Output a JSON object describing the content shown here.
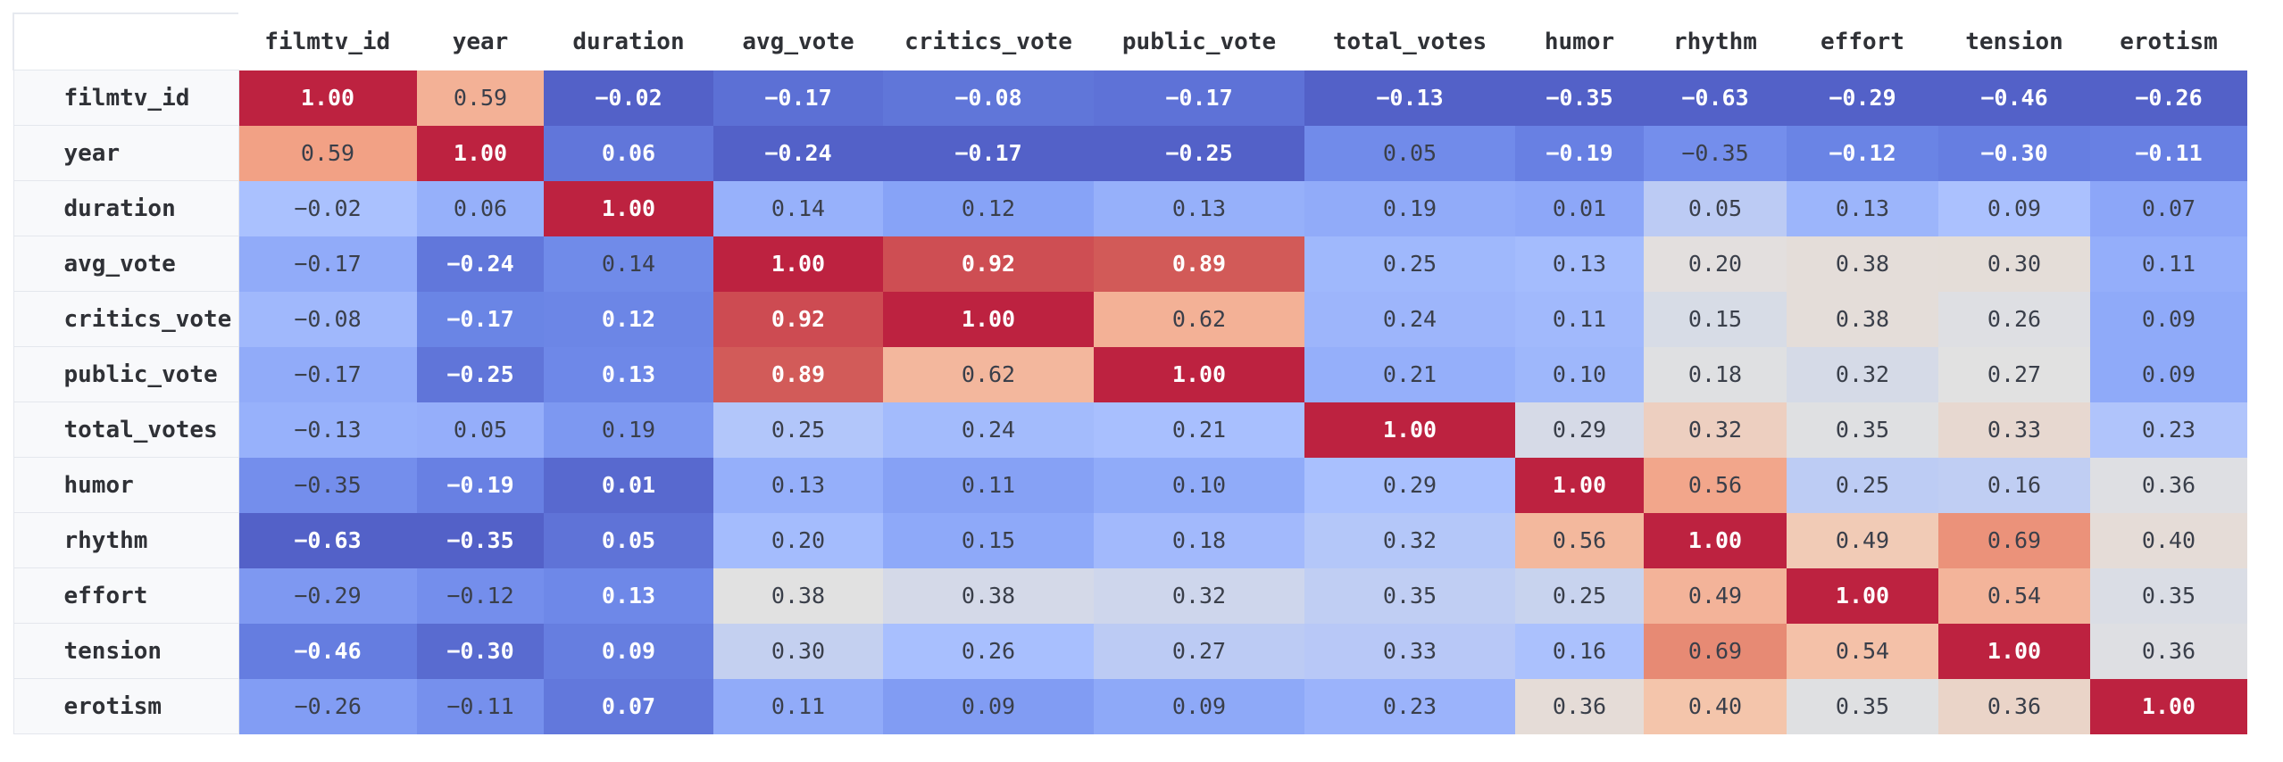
{
  "chart_data": {
    "type": "heatmap",
    "title": "",
    "xlabel": "",
    "ylabel": "",
    "colormap": "coolwarm",
    "value_range": [
      -1,
      1
    ],
    "number_format": "2 decimals, unicode minus",
    "columns": [
      "filmtv_id",
      "year",
      "duration",
      "avg_vote",
      "critics_vote",
      "public_vote",
      "total_votes",
      "humor",
      "rhythm",
      "effort",
      "tension",
      "erotism"
    ],
    "rows": [
      "filmtv_id",
      "year",
      "duration",
      "avg_vote",
      "critics_vote",
      "public_vote",
      "total_votes",
      "humor",
      "rhythm",
      "effort",
      "tension",
      "erotism"
    ],
    "values": [
      [
        1.0,
        0.59,
        -0.02,
        -0.17,
        -0.08,
        -0.17,
        -0.13,
        -0.35,
        -0.63,
        -0.29,
        -0.46,
        -0.26
      ],
      [
        0.59,
        1.0,
        0.06,
        -0.24,
        -0.17,
        -0.25,
        0.05,
        -0.19,
        -0.35,
        -0.12,
        -0.3,
        -0.11
      ],
      [
        -0.02,
        0.06,
        1.0,
        0.14,
        0.12,
        0.13,
        0.19,
        0.01,
        0.05,
        0.13,
        0.09,
        0.07
      ],
      [
        -0.17,
        -0.24,
        0.14,
        1.0,
        0.92,
        0.89,
        0.25,
        0.13,
        0.2,
        0.38,
        0.3,
        0.11
      ],
      [
        -0.08,
        -0.17,
        0.12,
        0.92,
        1.0,
        0.62,
        0.24,
        0.11,
        0.15,
        0.38,
        0.26,
        0.09
      ],
      [
        -0.17,
        -0.25,
        0.13,
        0.89,
        0.62,
        1.0,
        0.21,
        0.1,
        0.18,
        0.32,
        0.27,
        0.09
      ],
      [
        -0.13,
        0.05,
        0.19,
        0.25,
        0.24,
        0.21,
        1.0,
        0.29,
        0.32,
        0.35,
        0.33,
        0.23
      ],
      [
        -0.35,
        -0.19,
        0.01,
        0.13,
        0.11,
        0.1,
        0.29,
        1.0,
        0.56,
        0.25,
        0.16,
        0.36
      ],
      [
        -0.63,
        -0.35,
        0.05,
        0.2,
        0.15,
        0.18,
        0.32,
        0.56,
        1.0,
        0.49,
        0.69,
        0.4
      ],
      [
        -0.29,
        -0.12,
        0.13,
        0.38,
        0.38,
        0.32,
        0.35,
        0.25,
        0.49,
        1.0,
        0.54,
        0.35
      ],
      [
        -0.46,
        -0.3,
        0.09,
        0.3,
        0.26,
        0.27,
        0.33,
        0.16,
        0.69,
        0.54,
        1.0,
        0.36
      ],
      [
        -0.26,
        -0.11,
        0.07,
        0.11,
        0.09,
        0.09,
        0.23,
        0.36,
        0.4,
        0.35,
        0.36,
        1.0
      ]
    ],
    "column_color_ranges": [
      [
        -0.63,
        1.0
      ],
      [
        -0.35,
        1.0
      ],
      [
        -0.02,
        1.0
      ],
      [
        -0.24,
        1.0
      ],
      [
        -0.17,
        1.0
      ],
      [
        -0.25,
        1.0
      ],
      [
        -0.13,
        1.0
      ],
      [
        -0.35,
        1.0
      ],
      [
        -0.63,
        1.0
      ],
      [
        -0.29,
        1.0
      ],
      [
        -0.46,
        1.0
      ],
      [
        -0.26,
        1.0
      ]
    ]
  }
}
